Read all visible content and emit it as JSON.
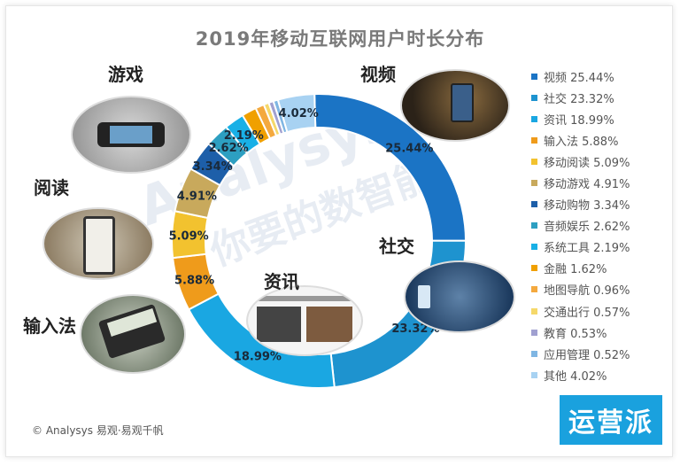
{
  "title": "2019年移动互联网用户时长分布",
  "footer": "© Analysys 易观·易观千帆",
  "badge": "运营派",
  "watermark": {
    "brand": "Analysys",
    "slogan": "你要的数智能"
  },
  "category_labels": {
    "video": "视频",
    "social": "社交",
    "news": "资讯",
    "ime": "输入法",
    "reading": "阅读",
    "game": "游戏"
  },
  "colors": [
    "#1b74c5",
    "#1e93cf",
    "#1aa7e2",
    "#ef9b1b",
    "#f2c22f",
    "#c8a95c",
    "#1d5fa9",
    "#2d9fc1",
    "#19b0e6",
    "#f0a000",
    "#f4a93e",
    "#f5d86a",
    "#a0a0d0",
    "#7fb6e3",
    "#a8d2f2"
  ],
  "chart_data": {
    "type": "pie",
    "title": "2019年移动互联网用户时长分布",
    "categories": [
      "视频",
      "社交",
      "资讯",
      "输入法",
      "移动阅读",
      "移动游戏",
      "移动购物",
      "音频娱乐",
      "系统工具",
      "金融",
      "地图导航",
      "交通出行",
      "教育",
      "应用管理",
      "其他"
    ],
    "values": [
      25.44,
      23.32,
      18.99,
      5.88,
      5.09,
      4.91,
      3.34,
      2.62,
      2.19,
      1.62,
      0.96,
      0.57,
      0.53,
      0.52,
      4.02
    ],
    "legend_labels": [
      "视频 25.44%",
      "社交 23.32%",
      "资讯 18.99%",
      "输入法 5.88%",
      "移动阅读 5.09%",
      "移动游戏 4.91%",
      "移动购物 3.34%",
      "音频娱乐 2.62%",
      "系统工具 2.19%",
      "金融 1.62%",
      "地图导航 0.96%",
      "交通出行 0.57%",
      "教育 0.53%",
      "应用管理 0.52%",
      "其他 4.02%"
    ],
    "data_labels": [
      "25.44%",
      "23.32%",
      "18.99%",
      "5.88%",
      "5.09%",
      "4.91%",
      "3.34%",
      "2.62%",
      "2.19%",
      "",
      "",
      "",
      "",
      "",
      "4.02%"
    ],
    "legend_position": "right"
  }
}
